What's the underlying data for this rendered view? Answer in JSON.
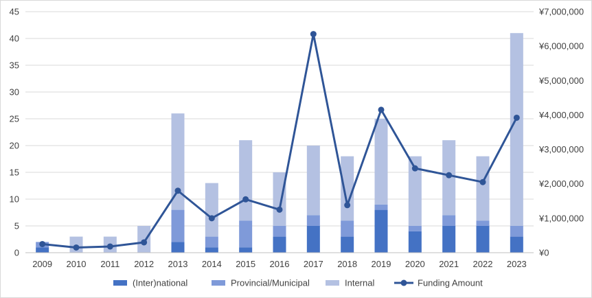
{
  "chart_data": {
    "type": "bar",
    "stacked": true,
    "categories": [
      "2009",
      "2010",
      "2011",
      "2012",
      "2013",
      "2014",
      "2015",
      "2016",
      "2017",
      "2018",
      "2019",
      "2020",
      "2021",
      "2022",
      "2023"
    ],
    "series": [
      {
        "name": "(Inter)national",
        "type": "bar",
        "axis": "left",
        "color": "#4472c4",
        "values": [
          1,
          0,
          0,
          0,
          2,
          1,
          1,
          3,
          5,
          3,
          8,
          4,
          5,
          5,
          3
        ]
      },
      {
        "name": "Provincial/Municipal",
        "type": "bar",
        "axis": "left",
        "color": "#7f9ad9",
        "values": [
          1,
          0,
          0,
          0,
          6,
          2,
          5,
          2,
          2,
          3,
          1,
          1,
          2,
          1,
          2
        ]
      },
      {
        "name": "Internal",
        "type": "bar",
        "axis": "left",
        "color": "#b4c1e2",
        "values": [
          0,
          3,
          3,
          5,
          18,
          10,
          15,
          10,
          13,
          12,
          16,
          13,
          14,
          12,
          36
        ]
      },
      {
        "name": "Funding Amount",
        "type": "line",
        "axis": "right",
        "color": "#2f5597",
        "values": [
          250000,
          150000,
          180000,
          300000,
          1800000,
          1000000,
          1550000,
          1250000,
          6350000,
          1380000,
          4150000,
          2450000,
          2250000,
          2050000,
          3920000
        ]
      }
    ],
    "y_left": {
      "min": 0,
      "max": 45,
      "step": 5,
      "tick_labels": [
        "0",
        "5",
        "10",
        "15",
        "20",
        "25",
        "30",
        "35",
        "40",
        "45"
      ]
    },
    "y_right": {
      "min": 0,
      "max": 7000000,
      "step": 1000000,
      "tick_labels": [
        "¥0",
        "¥1,000,000",
        "¥2,000,000",
        "¥3,000,000",
        "¥4,000,000",
        "¥5,000,000",
        "¥6,000,000",
        "¥7,000,000"
      ]
    },
    "title": "",
    "grid": true,
    "legend_position": "bottom",
    "legend": [
      "(Inter)national",
      "Provincial/Municipal",
      "Internal",
      "Funding Amount"
    ]
  }
}
